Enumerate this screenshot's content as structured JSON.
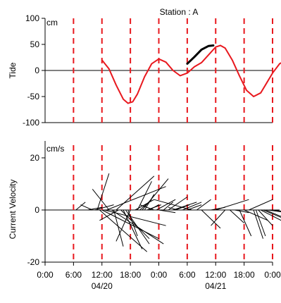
{
  "title": "Station : A",
  "colors": {
    "tide_line": "#e8181e",
    "tide_highlight": "#000000",
    "vertical_markers": "#e8181e",
    "axes": "#000000",
    "vectors": "#000000"
  },
  "chart_data": [
    {
      "type": "line",
      "panel": "tide",
      "ylabel": "Tide",
      "unit": "cm",
      "ylim": [
        -100,
        100
      ],
      "yticks": [
        100,
        50,
        0,
        -50,
        -100
      ],
      "xlim": [
        0,
        96
      ],
      "x_unit": "hours from 04/19 00:00",
      "series": [
        {
          "style": "red",
          "points": [
            [
              12.0,
              20
            ],
            [
              13.5,
              3
            ],
            [
              15.0,
              -28
            ],
            [
              16.5,
              -55
            ],
            [
              17.5,
              -63
            ],
            [
              18.5,
              -60
            ],
            [
              19.5,
              -45
            ],
            [
              21.0,
              -12
            ],
            [
              22.5,
              13
            ],
            [
              24.0,
              22
            ],
            [
              25.5,
              16
            ],
            [
              27.0,
              0
            ],
            [
              28.5,
              -10
            ],
            [
              30.0,
              -5
            ],
            [
              31.5,
              7
            ],
            [
              33.0,
              15
            ],
            [
              34.5,
              30
            ],
            [
              36.0,
              45
            ],
            [
              37.0,
              48
            ],
            [
              38.0,
              43
            ],
            [
              39.5,
              20
            ],
            [
              41.0,
              -10
            ],
            [
              42.5,
              -38
            ],
            [
              44.0,
              -50
            ],
            [
              45.5,
              -43
            ],
            [
              46.5,
              -28
            ],
            [
              48.0,
              -5
            ],
            [
              49.5,
              13
            ],
            [
              51.0,
              20
            ]
          ]
        },
        {
          "style": "black-highlight",
          "points": [
            [
              30.0,
              13
            ],
            [
              31.5,
              26
            ],
            [
              33.0,
              40
            ],
            [
              34.5,
              47
            ],
            [
              35.5,
              48
            ]
          ]
        }
      ]
    },
    {
      "type": "vector",
      "panel": "current",
      "ylabel": "Current Velocity",
      "unit": "cm/s",
      "ylim": [
        -20,
        20
      ],
      "yticks": [
        20,
        0,
        -20
      ],
      "xlim": [
        0,
        96
      ],
      "note": "stick plot: each segment starts on the zero line at time x and points in direction (dx, dy) scaled to the velocity",
      "vectors": [
        [
          6.5,
          2.0,
          3
        ],
        [
          8.0,
          3.5,
          0
        ],
        [
          9.0,
          3.0,
          1
        ],
        [
          10.0,
          -2.5,
          2
        ],
        [
          10.5,
          4.0,
          2
        ],
        [
          11.0,
          2.5,
          14
        ],
        [
          11.5,
          10.0,
          -16
        ],
        [
          12.0,
          12.0,
          -11
        ],
        [
          12.5,
          13.0,
          -6
        ],
        [
          13.0,
          12.5,
          9
        ],
        [
          13.5,
          -3.5,
          8
        ],
        [
          14.0,
          11.0,
          -13
        ],
        [
          14.5,
          2.0,
          -14
        ],
        [
          15.0,
          8.0,
          13
        ],
        [
          15.5,
          -4.0,
          -4
        ],
        [
          16.0,
          6.0,
          -11
        ],
        [
          16.5,
          4.0,
          -15
        ],
        [
          17.0,
          5.0,
          -13
        ],
        [
          17.5,
          2.0,
          -10
        ],
        [
          18.0,
          -3.0,
          -12
        ],
        [
          19.0,
          4.0,
          4
        ],
        [
          19.5,
          3.0,
          11
        ],
        [
          20.0,
          2.5,
          4
        ],
        [
          20.5,
          5.5,
          12
        ],
        [
          21.0,
          2.0,
          6
        ],
        [
          21.5,
          3.0,
          2
        ],
        [
          22.0,
          2.0,
          2
        ],
        [
          23.0,
          -3.0,
          2
        ],
        [
          23.5,
          4.0,
          4
        ],
        [
          24.0,
          3.5,
          -1
        ],
        [
          25.0,
          2.0,
          3
        ],
        [
          26.0,
          4.0,
          5
        ],
        [
          27.0,
          5.0,
          3
        ],
        [
          27.5,
          3.0,
          2
        ],
        [
          28.0,
          -2.0,
          1
        ],
        [
          29.0,
          4.0,
          3
        ],
        [
          30.0,
          3.0,
          2
        ],
        [
          31.0,
          -8.0,
          4
        ],
        [
          32.0,
          3.0,
          4
        ],
        [
          33.0,
          4.0,
          -7
        ],
        [
          34.0,
          -4.0,
          0
        ],
        [
          35.0,
          3.0,
          1
        ],
        [
          36.0,
          7.0,
          4
        ],
        [
          37.0,
          9.0,
          0
        ],
        [
          38.0,
          -3.0,
          -6
        ],
        [
          39.0,
          3.0,
          -5
        ],
        [
          40.0,
          3.0,
          -1
        ],
        [
          41.0,
          2.5,
          -10
        ],
        [
          42.0,
          5.0,
          -4
        ],
        [
          43.0,
          5.0,
          4
        ],
        [
          43.5,
          6.0,
          0
        ],
        [
          44.0,
          2.0,
          -11
        ],
        [
          44.5,
          2.0,
          -10
        ],
        [
          45.0,
          3.0,
          -6
        ],
        [
          45.5,
          6.5,
          -6
        ],
        [
          46.0,
          4.0,
          -3
        ],
        [
          46.5,
          4.0,
          -3
        ],
        [
          47.0,
          4.0,
          -1
        ],
        [
          48.0,
          4.5,
          -1
        ]
      ]
    }
  ],
  "x_axis": {
    "tick_labels": [
      "0:00",
      "6:00",
      "12:00",
      "18:00",
      "0:00",
      "6:00",
      "12:00",
      "18:00",
      "0:00"
    ],
    "tick_hours": [
      0,
      6,
      12,
      18,
      24,
      30,
      36,
      42,
      48
    ],
    "date_labels": [
      {
        "text": "04/20",
        "hour": 12
      },
      {
        "text": "04/21",
        "hour": 36
      }
    ],
    "dashed_markers_hours": [
      6,
      12,
      18,
      24,
      30,
      36,
      42,
      48
    ]
  }
}
